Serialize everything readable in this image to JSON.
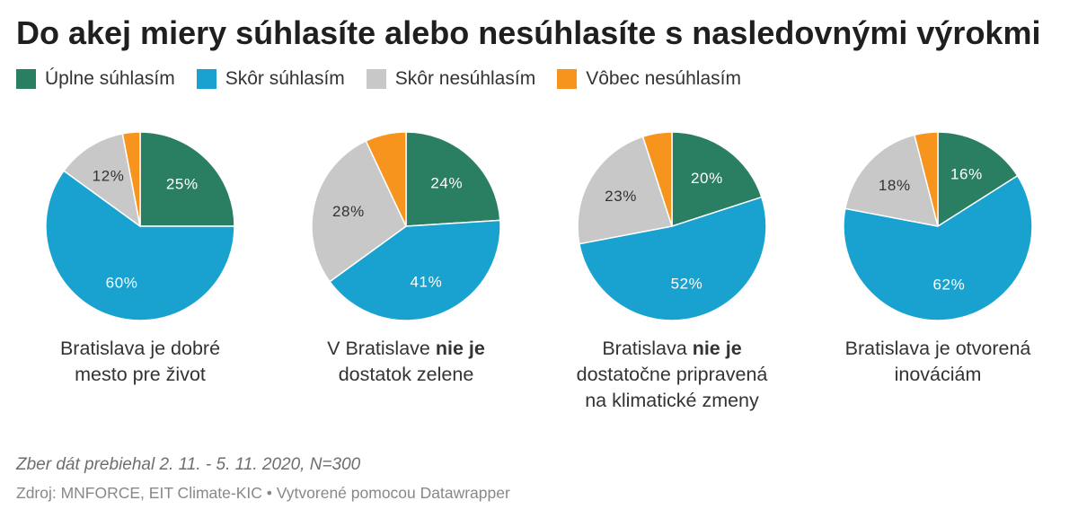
{
  "title": "Do akej miery súhlasíte alebo nesúhlasíte s nasledovnými výrokmi",
  "legend": {
    "position": "top-left",
    "items": [
      {
        "label": "Úplne súhlasím",
        "color": "#2a7f62"
      },
      {
        "label": "Skôr súhlasím",
        "color": "#19a2d0"
      },
      {
        "label": "Skôr nesúhlasím",
        "color": "#c8c8c8"
      },
      {
        "label": "Vôbec nesúhlasím",
        "color": "#f7941d"
      }
    ]
  },
  "chart_data": [
    {
      "type": "pie",
      "title": [
        "Bratislava je dobré mesto pre život"
      ],
      "categories": [
        "Úplne súhlasím",
        "Skôr súhlasím",
        "Skôr nesúhlasím",
        "Vôbec nesúhlasím"
      ],
      "values": [
        25,
        60,
        12,
        3
      ],
      "value_labels": [
        "25%",
        "60%",
        "12%",
        null
      ]
    },
    {
      "type": "pie",
      "title": [
        "V Bratislave",
        "nie je",
        "dostatok zelene"
      ],
      "categories": [
        "Úplne súhlasím",
        "Skôr súhlasím",
        "Skôr nesúhlasím",
        "Vôbec nesúhlasím"
      ],
      "values": [
        24,
        41,
        28,
        7
      ],
      "value_labels": [
        "24%",
        "41%",
        "28%",
        null
      ]
    },
    {
      "type": "pie",
      "title": [
        "Bratislava",
        "nie je",
        "dostatočne pripravená na klimatické zmeny"
      ],
      "categories": [
        "Úplne súhlasím",
        "Skôr súhlasím",
        "Skôr nesúhlasím",
        "Vôbec nesúhlasím"
      ],
      "values": [
        20,
        52,
        23,
        5
      ],
      "value_labels": [
        "20%",
        "52%",
        "23%",
        null
      ]
    },
    {
      "type": "pie",
      "title": [
        "Bratislava je otvorená inováciám"
      ],
      "categories": [
        "Úplne súhlasím",
        "Skôr súhlasím",
        "Skôr nesúhlasím",
        "Vôbec nesúhlasím"
      ],
      "values": [
        16,
        62,
        18,
        4
      ],
      "value_labels": [
        "16%",
        "62%",
        "18%",
        null
      ]
    }
  ],
  "notes": "Zber dát prebiehal 2. 11. - 5. 11. 2020, N=300",
  "source": {
    "text": "Zdroj: MNFORCE, EIT Climate-KIC",
    "separator": "•",
    "credit": "Vytvorené pomocou Datawrapper"
  }
}
